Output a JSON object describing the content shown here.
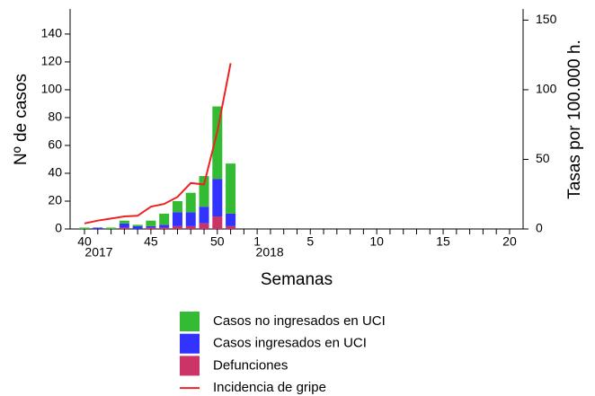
{
  "chart_data": {
    "type": "bar",
    "ylabel": "Nº de casos",
    "y2label": "Tasas por 100.000 h.",
    "xlabel": "Semanas",
    "categories": [
      "40",
      null,
      null,
      null,
      null,
      "45",
      null,
      null,
      null,
      null,
      "50",
      null,
      null,
      "1",
      null,
      null,
      null,
      "5",
      null,
      null,
      null,
      null,
      "10",
      null,
      null,
      null,
      null,
      "15",
      null,
      null,
      null,
      null,
      "20"
    ],
    "year_labels": [
      {
        "index": 0,
        "label": "2017"
      },
      {
        "index": 13,
        "label": "2018"
      }
    ],
    "series": [
      {
        "name": "Casos no ingresados en UCI",
        "color": "#33bb33",
        "type": "bar",
        "values": [
          1,
          0,
          1,
          2,
          1,
          4,
          8,
          8,
          14,
          22,
          52,
          36,
          null,
          null,
          null,
          null,
          null,
          null,
          null,
          null,
          null,
          null,
          null,
          null,
          null,
          null,
          null,
          null,
          null,
          null,
          null,
          null,
          null
        ]
      },
      {
        "name": "Casos ingresados en UCI",
        "color": "#3333ff",
        "type": "bar",
        "values": [
          0,
          1,
          0,
          3,
          2,
          1,
          2,
          10,
          10,
          12,
          27,
          9,
          null,
          null,
          null,
          null,
          null,
          null,
          null,
          null,
          null,
          null,
          null,
          null,
          null,
          null,
          null,
          null,
          null,
          null,
          null,
          null,
          null
        ]
      },
      {
        "name": "Defunciones",
        "color": "#cc3366",
        "type": "bar",
        "values": [
          0,
          0,
          0,
          1,
          0,
          1,
          1,
          2,
          2,
          4,
          9,
          2,
          null,
          null,
          null,
          null,
          null,
          null,
          null,
          null,
          null,
          null,
          null,
          null,
          null,
          null,
          null,
          null,
          null,
          null,
          null,
          null,
          null
        ]
      },
      {
        "name": "Incidencia de gripe",
        "color": "#ee2222",
        "type": "line",
        "axis": "y2",
        "values": [
          4,
          6,
          7.5,
          9,
          9.5,
          16,
          18,
          23,
          33,
          32,
          70,
          119,
          null,
          null,
          null,
          null,
          null,
          null,
          null,
          null,
          null,
          null,
          null,
          null,
          null,
          null,
          null,
          null,
          null,
          null,
          null,
          null,
          null
        ]
      }
    ],
    "stack_order": [
      2,
      1,
      0
    ],
    "ylim": [
      0,
      158
    ],
    "yticks": [
      0,
      20,
      40,
      60,
      80,
      100,
      120,
      140
    ],
    "y2lim": [
      0,
      158
    ],
    "y2ticks": [
      0,
      50,
      100,
      150
    ]
  }
}
